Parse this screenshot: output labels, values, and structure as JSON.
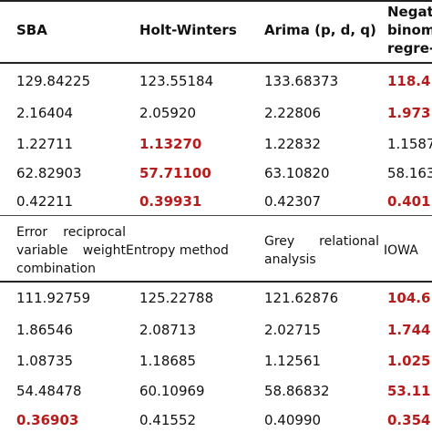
{
  "top_table": {
    "headers": [
      "SBA",
      "Holt-Winters",
      "Arima (p, d, q)",
      "Negat",
      "binom",
      "regre-"
    ],
    "rows": [
      [
        "129.84225",
        "123.55184",
        "133.68373",
        "118.4"
      ],
      [
        "2.16404",
        "2.05920",
        "2.22806",
        "1.973"
      ],
      [
        "1.22711",
        "1.13270",
        "1.22832",
        "1.1587"
      ],
      [
        "62.82903",
        "57.71100",
        "63.10820",
        "58.163"
      ],
      [
        "0.42211",
        "0.39931",
        "0.42307",
        "0.401"
      ]
    ]
  },
  "bottom_table": {
    "headers": {
      "col1_line1": "Error reciprocal",
      "col1_line2": "variable weight",
      "col1_line3": "combination",
      "col2": "Entropy method",
      "col3_line1": "Grey relational",
      "col3_line2": "analysis",
      "col4": "IOWA"
    },
    "rows": [
      [
        "111.92759",
        "125.22788",
        "121.62876",
        "104.6"
      ],
      [
        "1.86546",
        "2.08713",
        "2.02715",
        "1.744"
      ],
      [
        "1.08735",
        "1.18685",
        "1.12561",
        "1.025"
      ],
      [
        "54.48478",
        "60.10969",
        "58.86832",
        "53.11"
      ],
      [
        "0.36903",
        "0.41552",
        "0.40990",
        "0.354"
      ]
    ]
  },
  "colors": {
    "highlight": "#b71c1c",
    "text": "#111111",
    "rule": "#222222"
  }
}
